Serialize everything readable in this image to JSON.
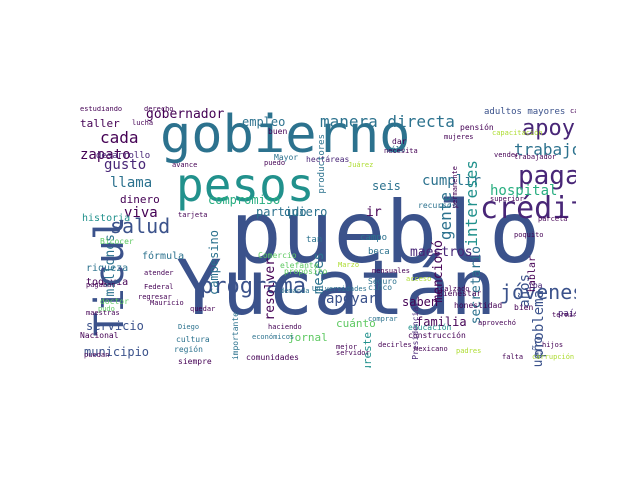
{
  "colors": {
    "background": "#ffffff",
    "palette": [
      "#440154",
      "#482677",
      "#3b528b",
      "#2c728e",
      "#21918c",
      "#28ae80",
      "#5ec962",
      "#addc30",
      "#fde725"
    ]
  },
  "words": [
    {
      "text": "pueblo",
      "color": "#3b528b"
    },
    {
      "text": "Yucatán",
      "color": "#3b528b"
    },
    {
      "text": "gobierno",
      "color": "#2c728e"
    },
    {
      "text": "pesos",
      "color": "#21918c"
    },
    {
      "text": "crédito",
      "color": "#482677"
    },
    {
      "text": "programa",
      "color": "#3b528b"
    },
    {
      "text": "pagar",
      "color": "#482677"
    },
    {
      "text": "apoyo",
      "color": "#482677"
    },
    {
      "text": "manera directa",
      "color": "#2c728e"
    },
    {
      "text": "gobernador",
      "color": "#440154"
    },
    {
      "text": "trabajo",
      "color": "#2c728e"
    },
    {
      "text": "salud",
      "color": "#3b528b"
    },
    {
      "text": "jóvenes",
      "color": "#3b528b"
    },
    {
      "text": "apoyar",
      "color": "#3b528b"
    },
    {
      "text": "cumplir",
      "color": "#2c728e"
    },
    {
      "text": "cada",
      "color": "#440154"
    },
    {
      "text": "gusto",
      "color": "#482677"
    },
    {
      "text": "zapato",
      "color": "#440154"
    },
    {
      "text": "viva",
      "color": "#440154"
    },
    {
      "text": "dinero",
      "color": "#440154"
    },
    {
      "text": "llama",
      "color": "#2c728e"
    },
    {
      "text": "empleo",
      "color": "#2c728e"
    },
    {
      "text": "taller",
      "color": "#440154"
    },
    {
      "text": "servicio",
      "color": "#3b528b"
    },
    {
      "text": "municipio",
      "color": "#3b528b"
    },
    {
      "text": "familia",
      "color": "#440154"
    },
    {
      "text": "saben",
      "color": "#440154"
    },
    {
      "text": "partido",
      "color": "#2c728e"
    },
    {
      "text": "quiero",
      "color": "#2c728e"
    },
    {
      "text": "compromiso",
      "color": "#28ae80"
    },
    {
      "text": "seis",
      "color": "#2c728e"
    },
    {
      "text": "intereses",
      "color": "#21918c"
    },
    {
      "text": "hospital",
      "color": "#28ae80"
    },
    {
      "text": "problema",
      "color": "#3b528b"
    },
    {
      "text": "años",
      "color": "#3b528b"
    },
    {
      "text": "cuánto",
      "color": "#5ec962"
    },
    {
      "text": "jornal",
      "color": "#5ec962"
    },
    {
      "text": "ir",
      "color": "#440154"
    },
    {
      "text": "tan",
      "color": "#2c728e"
    },
    {
      "text": "beca",
      "color": "#2c728e"
    },
    {
      "text": "campo",
      "color": "#2c728e"
    },
    {
      "text": "fórmula",
      "color": "#2c728e"
    },
    {
      "text": "riqueza",
      "color": "#2c728e"
    },
    {
      "text": "todavía",
      "color": "#440154"
    },
    {
      "text": "historia",
      "color": "#21918c"
    },
    {
      "text": "desarrollo",
      "color": "#482677"
    },
    {
      "text": "país",
      "color": "#482677"
    },
    {
      "text": "hablar",
      "color": "#440154"
    },
    {
      "text": "bien",
      "color": "#440154"
    },
    {
      "text": "mencionó",
      "color": "#440154"
    },
    {
      "text": "pequeño",
      "color": "#3b528b"
    },
    {
      "text": "secretario",
      "color": "#2c728e"
    },
    {
      "text": "sureste",
      "color": "#21918c"
    },
    {
      "text": "gente",
      "color": "#2c728e"
    },
    {
      "text": "maestros",
      "color": "#482677"
    },
    {
      "text": "meses",
      "color": "#2c728e"
    },
    {
      "text": "resolver",
      "color": "#440154"
    },
    {
      "text": "campesino",
      "color": "#2c728e"
    },
    {
      "text": "millones",
      "color": "#2c728e"
    },
    {
      "text": "Ticul",
      "color": "#3b528b"
    },
    {
      "text": "adultos mayores",
      "color": "#3b528b"
    },
    {
      "text": "estudiando",
      "color": "#440154"
    },
    {
      "text": "derecho",
      "color": "#440154"
    },
    {
      "text": "hectáreas",
      "color": "#482677"
    },
    {
      "text": "productores",
      "color": "#2c728e"
    },
    {
      "text": "Comercio",
      "color": "#5ec962"
    },
    {
      "text": "elefante",
      "color": "#5ec962"
    },
    {
      "text": "propósito",
      "color": "#5ec962"
    },
    {
      "text": "Seguro",
      "color": "#2c728e"
    },
    {
      "text": "cinco",
      "color": "#2c728e"
    },
    {
      "text": "construcción",
      "color": "#440154"
    },
    {
      "text": "educación",
      "color": "#21918c"
    },
    {
      "text": "recursos",
      "color": "#2c728e"
    },
    {
      "text": "pensión",
      "color": "#440154"
    },
    {
      "text": "importante",
      "color": "#2c728e"
    },
    {
      "text": "cultura",
      "color": "#2c728e"
    },
    {
      "text": "región",
      "color": "#2c728e"
    },
    {
      "text": "siempre",
      "color": "#440154"
    },
    {
      "text": "Nacional",
      "color": "#440154"
    },
    {
      "text": "doctor",
      "color": "#5ec962"
    },
    {
      "text": "Bienestar",
      "color": "#440154"
    },
    {
      "text": "Presidencial",
      "color": "#482677"
    },
    {
      "text": "Universidades",
      "color": "#2c728e"
    },
    {
      "text": "honestidad",
      "color": "#440154"
    },
    {
      "text": "buen",
      "color": "#440154"
    },
    {
      "text": "Mayor",
      "color": "#2c728e"
    },
    {
      "text": "sólo",
      "color": "#2c728e"
    },
    {
      "text": "dar",
      "color": "#440154"
    },
    {
      "text": "iba",
      "color": "#482677"
    },
    {
      "text": "comunidades",
      "color": "#440154"
    },
    {
      "text": "regresar",
      "color": "#440154"
    },
    {
      "text": "puedo",
      "color": "#440154"
    },
    {
      "text": "puedan",
      "color": "#440154"
    },
    {
      "text": "tarjeta",
      "color": "#440154"
    },
    {
      "text": "atender",
      "color": "#440154"
    },
    {
      "text": "mexicano",
      "color": "#440154"
    },
    {
      "text": "quedar",
      "color": "#440154"
    },
    {
      "text": "hijos",
      "color": "#440154"
    },
    {
      "text": "falta",
      "color": "#440154"
    },
    {
      "text": "Federal",
      "color": "#440154"
    },
    {
      "text": "Diego",
      "color": "#2c728e"
    },
    {
      "text": "Bicocer",
      "color": "#5ec962"
    },
    {
      "text": "comprar",
      "color": "#2c728e"
    },
    {
      "text": "haciendo",
      "color": "#440154"
    },
    {
      "text": "decirles",
      "color": "#440154"
    },
    {
      "text": "aprovechó",
      "color": "#440154"
    },
    {
      "text": "maestras",
      "color": "#440154"
    },
    {
      "text": "pudo",
      "color": "#5ec962"
    },
    {
      "text": "padres",
      "color": "#addc30"
    },
    {
      "text": "parcela",
      "color": "#440154"
    },
    {
      "text": "superior",
      "color": "#440154"
    },
    {
      "text": "vender",
      "color": "#440154"
    },
    {
      "text": "trabajador",
      "color": "#440154"
    },
    {
      "text": "terminan",
      "color": "#440154"
    },
    {
      "text": "corrupción",
      "color": "#addc30"
    },
    {
      "text": "económicos",
      "color": "#2c728e"
    },
    {
      "text": "demanda",
      "color": "#2c728e"
    },
    {
      "text": "Mauricio",
      "color": "#440154"
    },
    {
      "text": "calzado",
      "color": "#440154"
    },
    {
      "text": "avance",
      "color": "#440154"
    },
    {
      "text": "necesita",
      "color": "#440154"
    },
    {
      "text": "mujeres",
      "color": "#440154"
    },
    {
      "text": "Juárez",
      "color": "#addc30"
    },
    {
      "text": "cabo",
      "color": "#440154"
    },
    {
      "text": "lucha",
      "color": "#440154"
    },
    {
      "text": "servidor",
      "color": "#440154"
    },
    {
      "text": "permanente",
      "color": "#440154"
    },
    {
      "text": "poquito",
      "color": "#440154"
    },
    {
      "text": "Marzo",
      "color": "#addc30"
    },
    {
      "text": "pagaban",
      "color": "#440154"
    },
    {
      "text": "acceso",
      "color": "#addc30"
    },
    {
      "text": "mensuales",
      "color": "#440154"
    },
    {
      "text": "mejor",
      "color": "#440154"
    },
    {
      "text": "capacitación",
      "color": "#addc30"
    }
  ]
}
